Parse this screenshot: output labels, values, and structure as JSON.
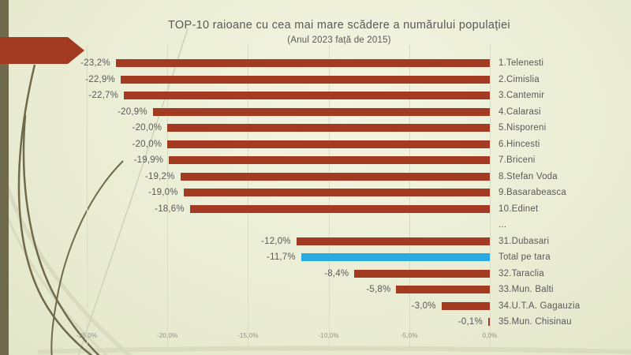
{
  "slide": {
    "title": "TOP-10 raioane cu cea mai mare scădere a numărului populației",
    "subtitle": "(Anul 2023 față de 2015)"
  },
  "colors": {
    "bar": "#A33B22",
    "bar_highlight": "#29ABE2",
    "arrow": "#A23921",
    "side_stripe": "#6E6A4B",
    "title_text": "#595959",
    "label_text": "#595959",
    "axis_text": "#8F8F82",
    "gridline": "#D9DCC2",
    "background_center": "#F3F5E2",
    "background_mid": "#EAEDD4",
    "background_edge": "#E2E6C9",
    "decor_dark": "#6F6A49",
    "decor_pale": "#D6D9BC",
    "decor_faint": "#CDD1B6"
  },
  "chart_data": {
    "type": "bar",
    "orientation": "horizontal",
    "title": "TOP-10 raioane cu cea mai mare scădere a numărului populației",
    "subtitle": "(Anul 2023 față de 2015)",
    "xlabel": "",
    "ylabel": "",
    "xlim": [
      -25,
      0
    ],
    "grid": "vertical",
    "legend": "none",
    "value_format": "percent-comma-decimal",
    "x_ticks": [
      {
        "value": -25,
        "label": "-25,0%"
      },
      {
        "value": -20,
        "label": "-20,0%"
      },
      {
        "value": -15,
        "label": "-15,0%"
      },
      {
        "value": -10,
        "label": "-10,0%"
      },
      {
        "value": -5,
        "label": "-5,0%"
      },
      {
        "value": 0,
        "label": "0,0%"
      }
    ],
    "rows": [
      {
        "rank_label": "1.Telenesti",
        "value": -23.2,
        "value_label": "-23,2%",
        "highlight": false
      },
      {
        "rank_label": "2.Cimislia",
        "value": -22.9,
        "value_label": "-22,9%",
        "highlight": false
      },
      {
        "rank_label": "3.Cantemir",
        "value": -22.7,
        "value_label": "-22,7%",
        "highlight": false
      },
      {
        "rank_label": "4.Calarasi",
        "value": -20.9,
        "value_label": "-20,9%",
        "highlight": false
      },
      {
        "rank_label": "5.Nisporeni",
        "value": -20.0,
        "value_label": "-20,0%",
        "highlight": false
      },
      {
        "rank_label": "6.Hincesti",
        "value": -20.0,
        "value_label": "-20,0%",
        "highlight": false
      },
      {
        "rank_label": "7.Briceni",
        "value": -19.9,
        "value_label": "-19,9%",
        "highlight": false
      },
      {
        "rank_label": "8.Stefan Voda",
        "value": -19.2,
        "value_label": "-19,2%",
        "highlight": false
      },
      {
        "rank_label": "9.Basarabeasca",
        "value": -19.0,
        "value_label": "-19,0%",
        "highlight": false
      },
      {
        "rank_label": "10.Edinet",
        "value": -18.6,
        "value_label": "-18,6%",
        "highlight": false
      },
      {
        "rank_label": "...",
        "value": null,
        "value_label": "",
        "highlight": false
      },
      {
        "rank_label": "31.Dubasari",
        "value": -12.0,
        "value_label": "-12,0%",
        "highlight": false
      },
      {
        "rank_label": "Total pe tara",
        "value": -11.7,
        "value_label": "-11,7%",
        "highlight": true
      },
      {
        "rank_label": "32.Taraclia",
        "value": -8.4,
        "value_label": "-8,4%",
        "highlight": false
      },
      {
        "rank_label": "33.Mun. Balti",
        "value": -5.8,
        "value_label": "-5,8%",
        "highlight": false
      },
      {
        "rank_label": "34.U.T.A. Gagauzia",
        "value": -3.0,
        "value_label": "-3,0%",
        "highlight": false
      },
      {
        "rank_label": "35.Mun. Chisinau",
        "value": -0.1,
        "value_label": "-0,1%",
        "highlight": false
      }
    ]
  }
}
